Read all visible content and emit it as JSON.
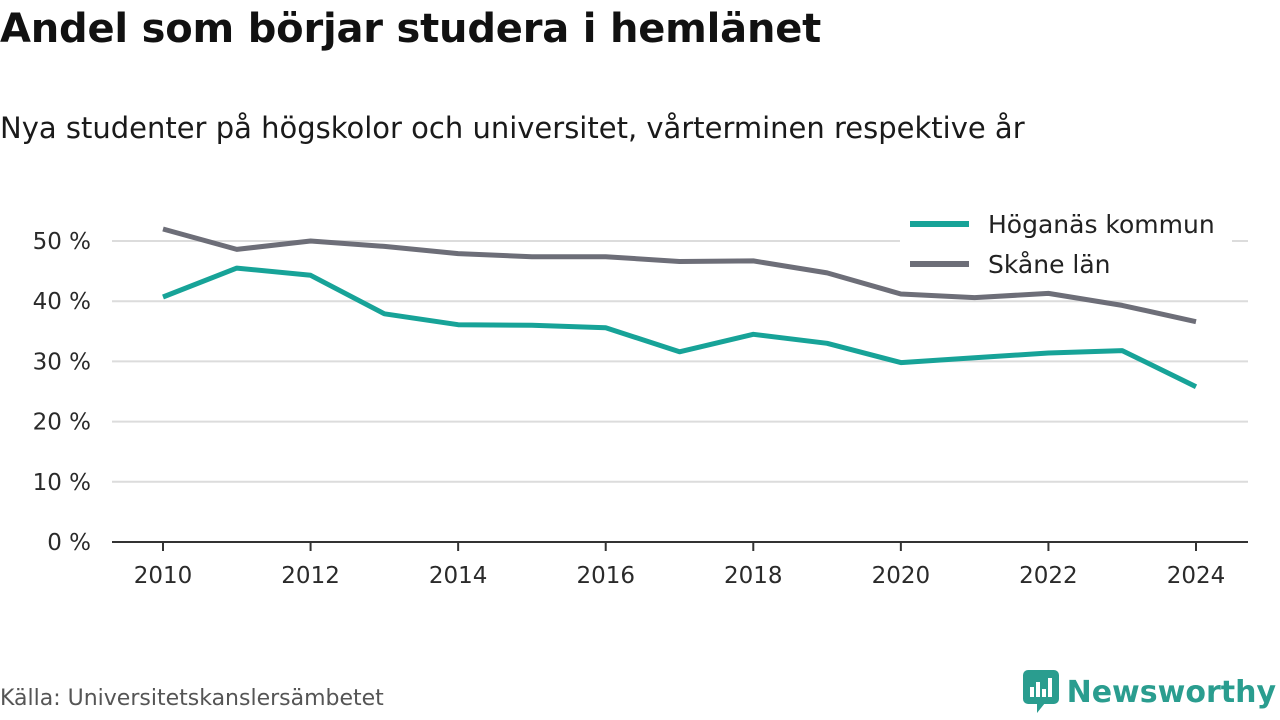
{
  "header": {
    "title": "Andel som börjar studera i hemlänet",
    "subtitle": "Nya studenter på högskolor och universitet, vårterminen respektive år"
  },
  "footer": {
    "source": "Källa: Universitetskanslersämbetet",
    "brand": "Newsworthy",
    "brand_icon": "newsworthy-logo-icon",
    "brand_color": "#2a9d8f"
  },
  "chart_data": {
    "type": "line",
    "title": "Andel som börjar studera i hemlänet",
    "subtitle": "Nya studenter på högskolor och universitet, vårterminen respektive år",
    "xlabel": "",
    "ylabel": "",
    "x": [
      2010,
      2011,
      2012,
      2013,
      2014,
      2015,
      2016,
      2017,
      2018,
      2019,
      2020,
      2021,
      2022,
      2023,
      2024
    ],
    "xticks": [
      "2010",
      "2012",
      "2014",
      "2016",
      "2018",
      "2020",
      "2022",
      "2024"
    ],
    "xlim": [
      2010,
      2024
    ],
    "yticks": [
      "0 %",
      "10 %",
      "20 %",
      "30 %",
      "40 %",
      "50 %"
    ],
    "ylim": [
      0,
      50
    ],
    "grid": "horizontal",
    "legend_position": "top-right",
    "series": [
      {
        "name": "Höganäs kommun",
        "color": "#17a398",
        "values": [
          40.7,
          45.5,
          44.3,
          37.9,
          36.1,
          36.0,
          35.6,
          31.6,
          34.5,
          33.0,
          29.8,
          30.6,
          31.4,
          31.8,
          25.8
        ]
      },
      {
        "name": "Skåne län",
        "color": "#6d6e78",
        "values": [
          52.0,
          48.6,
          50.0,
          49.1,
          47.9,
          47.4,
          47.4,
          46.6,
          46.7,
          44.7,
          41.2,
          40.6,
          41.3,
          39.3,
          36.6
        ]
      }
    ]
  }
}
